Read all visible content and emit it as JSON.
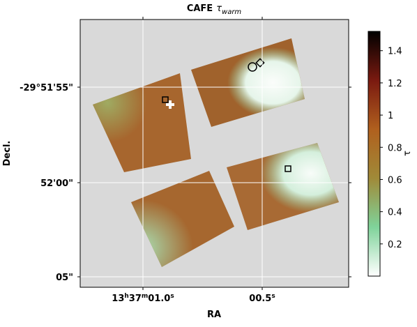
{
  "chart_data": {
    "type": "image",
    "title": {
      "text": "CAFE",
      "symbol": "τ",
      "subscript": "warm"
    },
    "xlabel": "RA",
    "ylabel": "Decl.",
    "xtick_labels": [
      [
        "13",
        "h",
        "37",
        "m",
        "01.0",
        "s"
      ],
      [
        "00.5",
        "s"
      ]
    ],
    "ytick_labels": [
      "-29°51'55\"",
      "52'00\"",
      "05\""
    ],
    "grid": true,
    "colorbar": {
      "label": "τ",
      "clim": [
        0,
        1.52
      ],
      "ticks": [
        0.2,
        0.4,
        0.6,
        0.8,
        1.0,
        1.2,
        1.4
      ],
      "colormap": [
        "#ffffff",
        "#7fd39a",
        "#a08a38",
        "#b0601e",
        "#7a1a10",
        "#000000"
      ]
    }
  }
}
